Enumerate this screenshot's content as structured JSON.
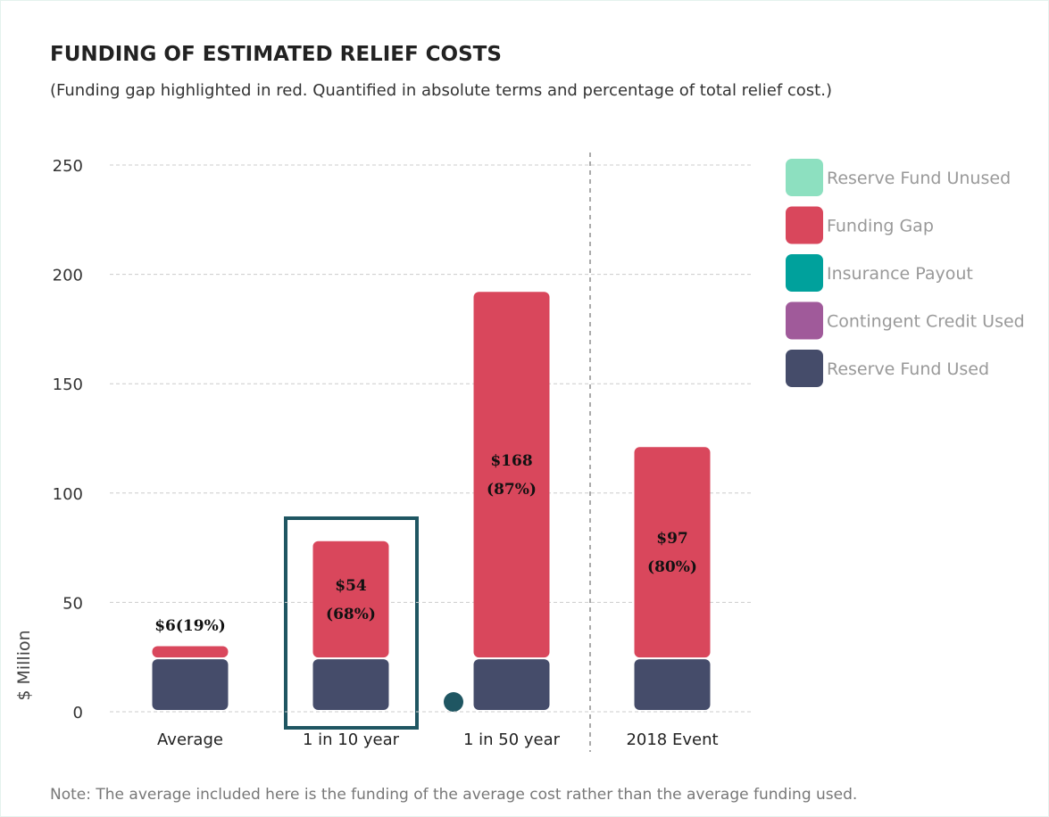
{
  "chart_data": {
    "type": "bar",
    "stacked": true,
    "title": "FUNDING OF ESTIMATED RELIEF COSTS",
    "subtitle": "(Funding gap highlighted in red. Quantified in absolute terms and percentage of total relief cost.)",
    "y_label": "$ Million",
    "note": "Note: The average included here is the funding of the average cost rather than the average funding used.",
    "categories": [
      "Average",
      "1 in 10 year",
      "1 in 50 year",
      "2018 Event"
    ],
    "series": [
      {
        "name": "Reserve Fund Unused",
        "color": "#8de0c0",
        "values": [
          0,
          0,
          0,
          0
        ]
      },
      {
        "name": "Funding Gap",
        "color": "#d9475c",
        "values": [
          6,
          54,
          168,
          97
        ],
        "value_labels": [
          "$6(19%)",
          "$54 (68%)",
          "$168 (87%)",
          "$97 (80%)"
        ]
      },
      {
        "name": "Insurance Payout",
        "color": "#00a19c",
        "values": [
          0,
          0,
          0,
          0
        ]
      },
      {
        "name": "Contingent Credit Used",
        "color": "#a05a9a",
        "values": [
          0,
          0,
          0,
          0
        ]
      },
      {
        "name": "Reserve Fund Used",
        "color": "#454c6a",
        "values": [
          24,
          24,
          24,
          24
        ]
      }
    ],
    "ylim": [
      0,
      250
    ],
    "yticks": [
      0,
      50,
      100,
      150,
      200,
      250
    ],
    "grid": true,
    "legend": "right"
  }
}
